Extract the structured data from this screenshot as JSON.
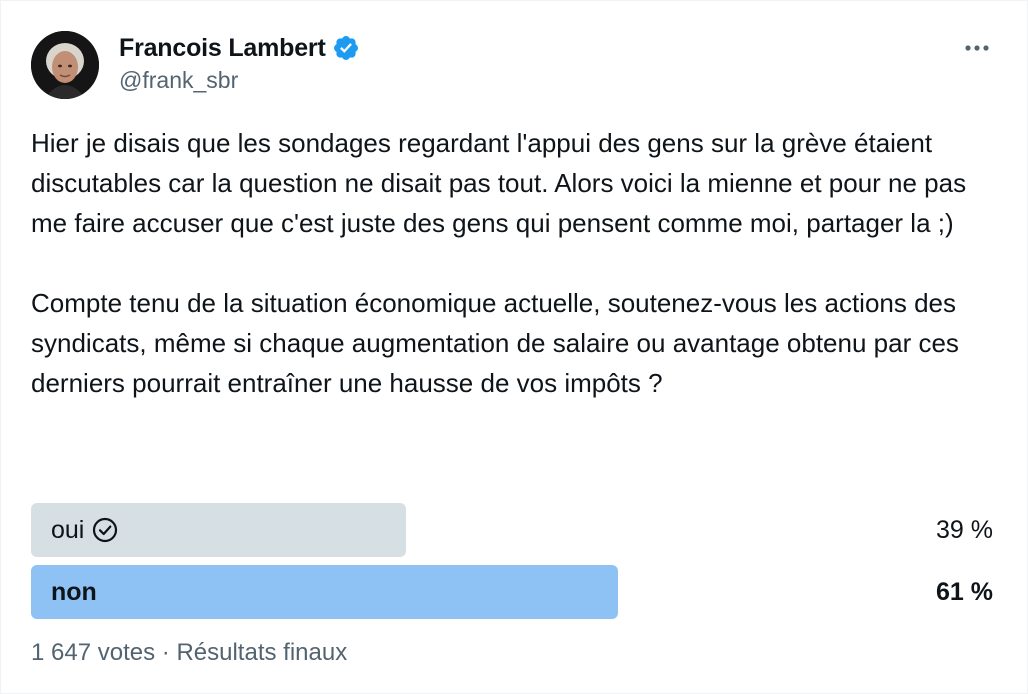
{
  "author": {
    "display_name": "Francois Lambert",
    "handle": "@frank_sbr",
    "verified": true,
    "verified_color": "#1d9bf0"
  },
  "tweet": {
    "text": "Hier je disais que les sondages regardant l'appui des gens sur la grève étaient discutables car la question ne disait pas tout. Alors voici la mienne et pour ne pas me faire accuser que c'est juste des gens qui pensent comme moi, partager la ;)\n\nCompte tenu de la situation économique actuelle, soutenez-vous les actions des syndicats, même si chaque augmentation de salaire ou avantage obtenu par ces derniers pourrait entraîner une hausse de vos impôts ?"
  },
  "icons": {
    "more": "more-horizontal-icon",
    "verified": "verified-badge-icon",
    "voted": "check-circle-icon"
  },
  "poll": {
    "options": [
      {
        "label": "oui",
        "percent_label": "39 %",
        "percent": 39,
        "voted": true,
        "winner": false
      },
      {
        "label": "non",
        "percent_label": "61 %",
        "percent": 61,
        "voted": false,
        "winner": true
      }
    ],
    "votes_label": "1 647 votes",
    "separator": "·",
    "status_label": "Résultats finaux",
    "footer": "1 647 votes · Résultats finaux"
  },
  "colors": {
    "winner_bar": "#8ec1f4",
    "loser_bar": "#cfd9de",
    "secondary_text": "#536471"
  }
}
